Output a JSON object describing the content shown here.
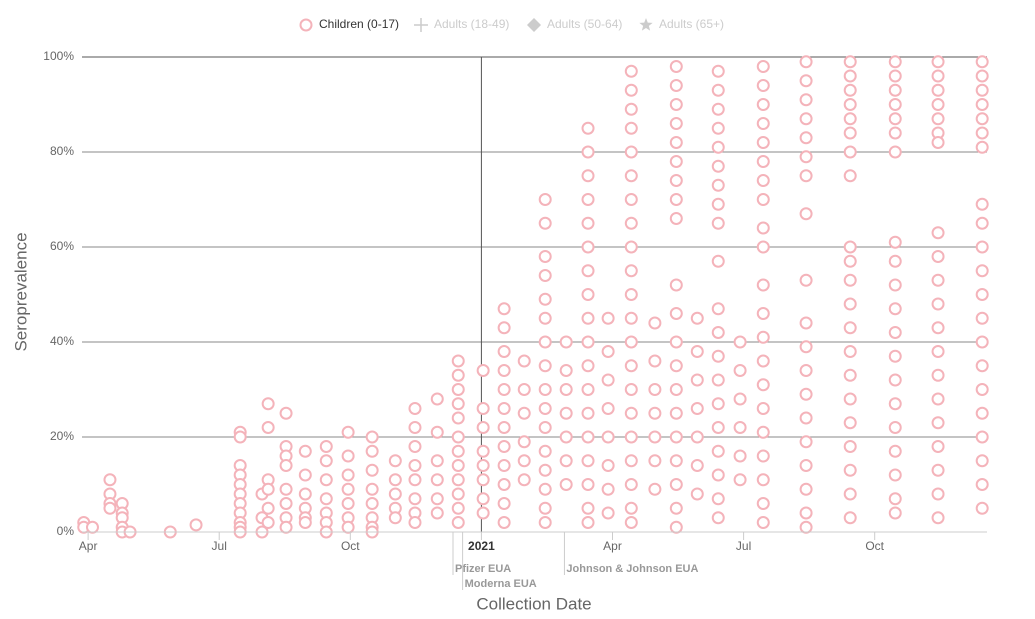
{
  "chart_data": {
    "type": "scatter",
    "xlabel": "Collection Date",
    "ylabel": "Seroprevalence",
    "xlim": [
      -0.14,
      20.57
    ],
    "xticks": [
      {
        "value": 0,
        "label": "Apr"
      },
      {
        "value": 3,
        "label": "Jul"
      },
      {
        "value": 6,
        "label": "Oct"
      },
      {
        "value": 9,
        "label": "2021"
      },
      {
        "value": 12,
        "label": "Apr"
      },
      {
        "value": 15,
        "label": "Jul"
      },
      {
        "value": 18,
        "label": "Oct"
      }
    ],
    "ylim": [
      0,
      100
    ],
    "yticks": [
      {
        "value": 0,
        "label": "0%"
      },
      {
        "value": 20,
        "label": "20%"
      },
      {
        "value": 40,
        "label": "40%"
      },
      {
        "value": 60,
        "label": "60%"
      },
      {
        "value": 80,
        "label": "80%"
      },
      {
        "value": 100,
        "label": "100%"
      }
    ],
    "grid": true,
    "annotations": [
      {
        "label": "Pfizer EUA",
        "x": 8.35
      },
      {
        "label": "Moderna EUA",
        "x": 8.57
      },
      {
        "label": "Johnson & Johnson EUA",
        "x": 10.9
      }
    ],
    "series": [
      {
        "name": "Children (0-17)",
        "color": "#f4b3ba",
        "marker": "circle",
        "visible": true,
        "x": [
          -0.1,
          -0.1,
          0.1,
          0.5,
          0.5,
          0.5,
          0.5,
          0.78,
          0.78,
          0.78,
          0.78,
          0.78,
          0.96,
          1.88,
          2.47,
          3.48,
          3.48,
          3.48,
          3.48,
          3.48,
          3.48,
          3.48,
          3.48,
          3.48,
          3.48,
          3.48,
          3.98,
          3.98,
          3.98,
          4.12,
          4.12,
          4.12,
          4.12,
          4.12,
          4.12,
          4.53,
          4.53,
          4.53,
          4.53,
          4.53,
          4.53,
          4.53,
          4.53,
          4.97,
          4.97,
          4.97,
          4.97,
          4.97,
          4.97,
          5.45,
          5.45,
          5.45,
          5.45,
          5.45,
          5.45,
          5.45,
          5.95,
          5.95,
          5.95,
          5.95,
          5.95,
          5.95,
          5.95,
          6.5,
          6.5,
          6.5,
          6.5,
          6.5,
          6.5,
          6.5,
          6.5,
          7.03,
          7.03,
          7.03,
          7.03,
          7.03,
          7.48,
          7.48,
          7.48,
          7.48,
          7.48,
          7.48,
          7.48,
          7.48,
          7.99,
          7.99,
          7.99,
          7.99,
          7.99,
          7.99,
          8.47,
          8.47,
          8.47,
          8.47,
          8.47,
          8.47,
          8.47,
          8.47,
          8.47,
          8.47,
          8.47,
          8.47,
          9.04,
          9.04,
          9.04,
          9.04,
          9.04,
          9.04,
          9.04,
          9.04,
          9.52,
          9.52,
          9.52,
          9.52,
          9.52,
          9.52,
          9.52,
          9.52,
          9.52,
          9.52,
          9.52,
          9.52,
          9.98,
          9.98,
          9.98,
          9.98,
          9.98,
          9.98,
          10.46,
          10.46,
          10.46,
          10.46,
          10.46,
          10.46,
          10.46,
          10.46,
          10.46,
          10.46,
          10.46,
          10.46,
          10.46,
          10.46,
          10.46,
          10.46,
          10.94,
          10.94,
          10.94,
          10.94,
          10.94,
          10.94,
          10.94,
          11.44,
          11.44,
          11.44,
          11.44,
          11.44,
          11.44,
          11.44,
          11.44,
          11.44,
          11.44,
          11.44,
          11.44,
          11.44,
          11.44,
          11.44,
          11.44,
          11.44,
          11.44,
          11.9,
          11.9,
          11.9,
          11.9,
          11.9,
          11.9,
          11.9,
          11.9,
          12.43,
          12.43,
          12.43,
          12.43,
          12.43,
          12.43,
          12.43,
          12.43,
          12.43,
          12.43,
          12.43,
          12.43,
          12.43,
          12.43,
          12.43,
          12.43,
          12.43,
          12.43,
          12.43,
          12.43,
          12.43,
          12.97,
          12.97,
          12.97,
          12.97,
          12.97,
          12.97,
          12.97,
          13.46,
          13.46,
          13.46,
          13.46,
          13.46,
          13.46,
          13.46,
          13.46,
          13.46,
          13.46,
          13.46,
          13.46,
          13.46,
          13.46,
          13.46,
          13.46,
          13.46,
          13.46,
          13.46,
          13.46,
          13.94,
          13.94,
          13.94,
          13.94,
          13.94,
          13.94,
          13.94,
          14.42,
          14.42,
          14.42,
          14.42,
          14.42,
          14.42,
          14.42,
          14.42,
          14.42,
          14.42,
          14.42,
          14.42,
          14.42,
          14.42,
          14.42,
          14.42,
          14.42,
          14.42,
          14.42,
          14.42,
          14.92,
          14.92,
          14.92,
          14.92,
          14.92,
          14.92,
          15.45,
          15.45,
          15.45,
          15.45,
          15.45,
          15.45,
          15.45,
          15.45,
          15.45,
          15.45,
          15.45,
          15.45,
          15.45,
          15.45,
          15.45,
          15.45,
          15.45,
          15.45,
          15.45,
          15.45,
          15.45,
          16.43,
          16.43,
          16.43,
          16.43,
          16.43,
          16.43,
          16.43,
          16.43,
          16.43,
          16.43,
          16.43,
          16.43,
          16.43,
          16.43,
          16.43,
          16.43,
          16.43,
          16.43,
          16.43,
          17.44,
          17.44,
          17.44,
          17.44,
          17.44,
          17.44,
          17.44,
          17.44,
          17.44,
          17.44,
          17.44,
          17.44,
          17.44,
          17.44,
          17.44,
          17.44,
          17.44,
          17.44,
          17.44,
          17.44,
          17.44,
          18.47,
          18.47,
          18.47,
          18.47,
          18.47,
          18.47,
          18.47,
          18.47,
          18.47,
          18.47,
          18.47,
          18.47,
          18.47,
          18.47,
          18.47,
          18.47,
          18.47,
          18.47,
          18.47,
          18.47,
          19.45,
          19.45,
          19.45,
          19.45,
          19.45,
          19.45,
          19.45,
          19.45,
          19.45,
          19.45,
          19.45,
          19.45,
          19.45,
          19.45,
          19.45,
          19.45,
          19.45,
          19.45,
          19.45,
          19.45,
          20.46,
          20.46,
          20.46,
          20.46,
          20.46,
          20.46,
          20.46,
          20.46,
          20.46,
          20.46,
          20.46,
          20.46,
          20.46,
          20.46,
          20.46,
          20.46,
          20.46,
          20.46,
          20.46,
          20.46,
          20.46
        ],
        "values": [
          2,
          1,
          1,
          11,
          8,
          6,
          5,
          6,
          4,
          3,
          1,
          0,
          0,
          0,
          1.5,
          21,
          20,
          14,
          12,
          10,
          8,
          6,
          4,
          2,
          1,
          0,
          8,
          3,
          0,
          27,
          22,
          11,
          9,
          5,
          2,
          25,
          18,
          16,
          14,
          9,
          6,
          3,
          1,
          17,
          12,
          8,
          5,
          3,
          2,
          18,
          15,
          11,
          7,
          4,
          2,
          0,
          21,
          16,
          12,
          9,
          6,
          3,
          1,
          20,
          17,
          13,
          9,
          6,
          3,
          1,
          0,
          15,
          11,
          8,
          5,
          3,
          26,
          22,
          18,
          14,
          11,
          7,
          4,
          2,
          28,
          21,
          15,
          11,
          7,
          4,
          36,
          33,
          30,
          27,
          24,
          20,
          17,
          14,
          11,
          8,
          5,
          2,
          34,
          26,
          22,
          17,
          14,
          11,
          7,
          4,
          47,
          43,
          38,
          34,
          30,
          26,
          22,
          18,
          14,
          10,
          6,
          2,
          36,
          30,
          25,
          19,
          15,
          11,
          70,
          65,
          58,
          54,
          49,
          45,
          40,
          35,
          30,
          26,
          22,
          17,
          13,
          9,
          5,
          2,
          40,
          34,
          30,
          25,
          20,
          15,
          10,
          85,
          80,
          75,
          70,
          65,
          60,
          55,
          50,
          45,
          40,
          35,
          30,
          25,
          20,
          15,
          10,
          5,
          2,
          45,
          38,
          32,
          26,
          20,
          14,
          9,
          4,
          97,
          93,
          89,
          85,
          80,
          75,
          70,
          65,
          60,
          55,
          50,
          45,
          40,
          35,
          30,
          25,
          20,
          15,
          10,
          5,
          2,
          44,
          36,
          30,
          25,
          20,
          15,
          9,
          98,
          94,
          90,
          86,
          82,
          78,
          74,
          70,
          66,
          52,
          46,
          40,
          35,
          30,
          25,
          20,
          15,
          10,
          5,
          1,
          45,
          38,
          32,
          26,
          20,
          14,
          8,
          97,
          93,
          89,
          85,
          81,
          77,
          73,
          69,
          65,
          57,
          47,
          42,
          37,
          32,
          27,
          22,
          17,
          12,
          7,
          3,
          40,
          34,
          28,
          22,
          16,
          11,
          98,
          94,
          90,
          86,
          82,
          78,
          74,
          70,
          64,
          60,
          52,
          46,
          41,
          36,
          31,
          26,
          21,
          16,
          11,
          6,
          2,
          99,
          95,
          91,
          87,
          83,
          79,
          75,
          67,
          53,
          44,
          39,
          34,
          29,
          24,
          19,
          14,
          9,
          4,
          1,
          99,
          96,
          93,
          90,
          87,
          84,
          80,
          75,
          60,
          57,
          53,
          48,
          43,
          38,
          33,
          28,
          23,
          18,
          13,
          8,
          3,
          99,
          96,
          93,
          90,
          87,
          84,
          80,
          61,
          57,
          52,
          47,
          42,
          37,
          32,
          27,
          22,
          17,
          12,
          7,
          4,
          99,
          96,
          93,
          90,
          87,
          84,
          82,
          63,
          58,
          53,
          48,
          43,
          38,
          33,
          28,
          23,
          18,
          13,
          8,
          3,
          99,
          96,
          93,
          90,
          87,
          84,
          81,
          69,
          65,
          60,
          55,
          50,
          45,
          40,
          35,
          30,
          25,
          20,
          15,
          10,
          5
        ]
      },
      {
        "name": "Adults (18-49)",
        "color": "#cccccc",
        "marker": "plus",
        "visible": false,
        "x": [],
        "values": []
      },
      {
        "name": "Adults (50-64)",
        "color": "#cccccc",
        "marker": "diamond",
        "visible": false,
        "x": [],
        "values": []
      },
      {
        "name": "Adults (65+)",
        "color": "#cccccc",
        "marker": "star",
        "visible": false,
        "x": [],
        "values": []
      }
    ]
  }
}
